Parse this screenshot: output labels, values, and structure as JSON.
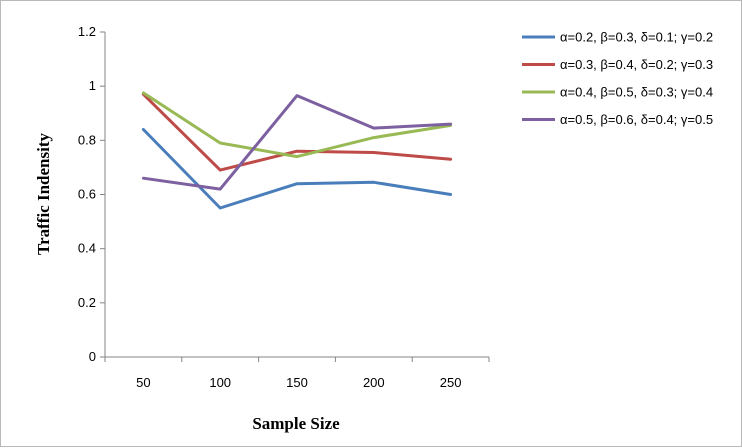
{
  "chart_data": {
    "type": "line",
    "title": "",
    "xlabel": "Sample Size",
    "ylabel": "Traffic Indensity",
    "categories": [
      "50",
      "100",
      "150",
      "200",
      "250"
    ],
    "ylim": [
      0,
      1.2
    ],
    "yticks": [
      "0",
      "0.2",
      "0.4",
      "0.6",
      "0.8",
      "1",
      "1.2"
    ],
    "grid": false,
    "legend_position": "right",
    "series": [
      {
        "name": "α=0.2, β=0.3, δ=0.1; γ=0.2",
        "color": "#4a7ebb",
        "values": [
          0.84,
          0.55,
          0.64,
          0.645,
          0.6
        ]
      },
      {
        "name": "α=0.3, β=0.4, δ=0.2; γ=0.3",
        "color": "#be4b48",
        "values": [
          0.97,
          0.69,
          0.76,
          0.755,
          0.73
        ]
      },
      {
        "name": "α=0.4, β=0.5, δ=0.3; γ=0.4",
        "color": "#98b954",
        "values": [
          0.975,
          0.79,
          0.74,
          0.81,
          0.855
        ]
      },
      {
        "name": "α=0.5, β=0.6, δ=0.4; γ=0.5",
        "color": "#7d60a0",
        "values": [
          0.66,
          0.62,
          0.965,
          0.845,
          0.86
        ]
      }
    ]
  }
}
